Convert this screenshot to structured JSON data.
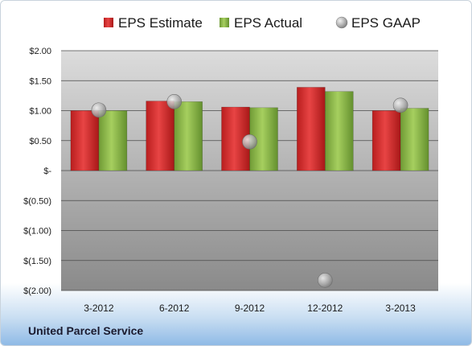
{
  "chart_data": {
    "type": "bar",
    "categories": [
      "3-2012",
      "6-2012",
      "9-2012",
      "12-2012",
      "3-2013"
    ],
    "series": [
      {
        "name": "EPS Estimate",
        "kind": "bar",
        "color": "#d42b2b",
        "values": [
          1.0,
          1.16,
          1.06,
          1.39,
          1.0
        ]
      },
      {
        "name": "EPS Actual",
        "kind": "bar",
        "color": "#8db94a",
        "values": [
          1.0,
          1.15,
          1.05,
          1.32,
          1.04
        ]
      },
      {
        "name": "EPS GAAP",
        "kind": "scatter",
        "color": "#b8b8b8",
        "values": [
          1.01,
          1.15,
          0.48,
          -1.83,
          1.09
        ]
      }
    ],
    "ylim": [
      -2.0,
      2.0
    ],
    "yticks": [
      2.0,
      1.5,
      1.0,
      0.5,
      0,
      -0.5,
      -1.0,
      -1.5,
      -2.0
    ],
    "ytick_labels": [
      "$2.00",
      "$1.50",
      "$1.00",
      "$0.50",
      "$-",
      "$(0.50)",
      "$(1.00)",
      "$(1.50)",
      "$(2.00)"
    ],
    "legend_position": "top",
    "grid": true
  },
  "company_name": "United Parcel Service"
}
